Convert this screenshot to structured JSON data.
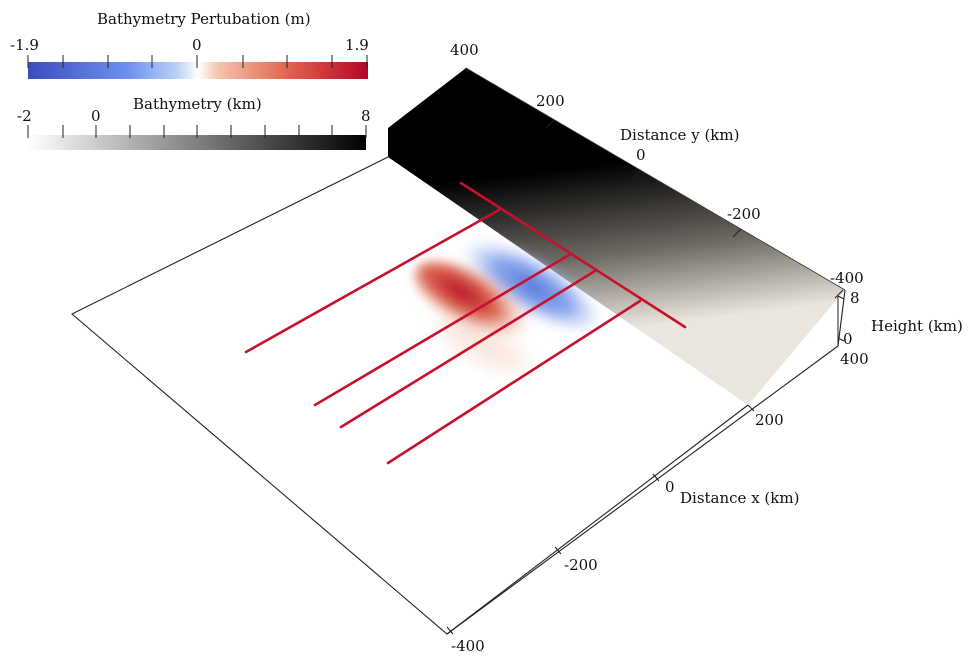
{
  "colorbars": {
    "perturbation": {
      "title": "Bathymetry Pertubation (m)",
      "min_label": "-1.9",
      "mid_label": "0",
      "max_label": "1.9",
      "colors": {
        "low": "#3b4cc0",
        "mid": "#ffffff",
        "high": "#b40426"
      }
    },
    "bathymetry": {
      "title": "Bathymetry (km)",
      "labels": [
        "-2",
        "0",
        "8"
      ],
      "colors": {
        "low": "#ffffff",
        "high": "#000000"
      }
    }
  },
  "axes": {
    "y": {
      "title": "Distance y (km)",
      "ticks": [
        "400",
        "200",
        "0",
        "-200",
        "-400"
      ]
    },
    "x": {
      "title": "Distance x (km)",
      "ticks": [
        "200",
        "0",
        "-200",
        "-400"
      ]
    },
    "z": {
      "title": "Height (km)",
      "ticks": [
        "8",
        "0"
      ],
      "corner_label": "400"
    }
  },
  "colors": {
    "profile_line": "#c8102e",
    "outline": "#222222",
    "slope_top": "#000000",
    "slope_bottom": "#e9e5dc"
  }
}
